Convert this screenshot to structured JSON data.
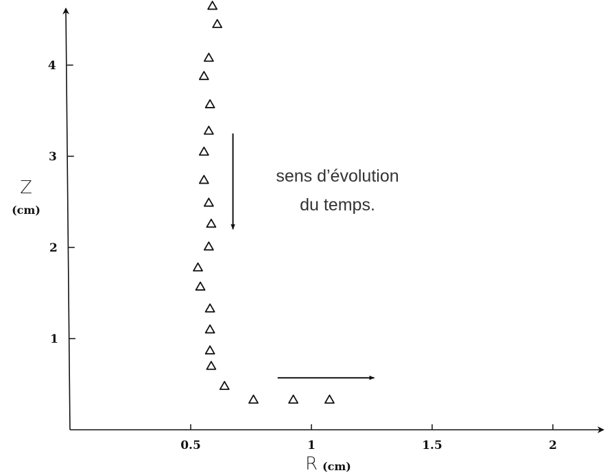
{
  "chart_data": {
    "type": "scatter",
    "title": "",
    "xlabel": "R",
    "xlabel_unit": "(cm)",
    "ylabel": "Z",
    "ylabel_unit": "(cm)",
    "xlim": [
      0,
      2.25
    ],
    "ylim": [
      0,
      4.7
    ],
    "grid": false,
    "marker": "open-triangle",
    "color": "#111111",
    "x_ticks": [
      {
        "value": 0.5,
        "label": "0.5"
      },
      {
        "value": 1,
        "label": "1"
      },
      {
        "value": 1.5,
        "label": "1.5"
      },
      {
        "value": 2,
        "label": "2"
      }
    ],
    "y_ticks": [
      {
        "value": 1,
        "label": "1"
      },
      {
        "value": 2,
        "label": "2"
      },
      {
        "value": 3,
        "label": "3"
      },
      {
        "value": 4,
        "label": "4"
      }
    ],
    "points": [
      {
        "x": 0.59,
        "y": 4.65
      },
      {
        "x": 0.61,
        "y": 4.45
      },
      {
        "x": 0.575,
        "y": 4.08
      },
      {
        "x": 0.555,
        "y": 3.88
      },
      {
        "x": 0.58,
        "y": 3.57
      },
      {
        "x": 0.575,
        "y": 3.28
      },
      {
        "x": 0.555,
        "y": 3.05
      },
      {
        "x": 0.555,
        "y": 2.74
      },
      {
        "x": 0.575,
        "y": 2.49
      },
      {
        "x": 0.585,
        "y": 2.26
      },
      {
        "x": 0.575,
        "y": 2.01
      },
      {
        "x": 0.53,
        "y": 1.78
      },
      {
        "x": 0.54,
        "y": 1.57
      },
      {
        "x": 0.58,
        "y": 1.33
      },
      {
        "x": 0.58,
        "y": 1.1
      },
      {
        "x": 0.58,
        "y": 0.87
      },
      {
        "x": 0.585,
        "y": 0.7
      },
      {
        "x": 0.64,
        "y": 0.48
      },
      {
        "x": 0.76,
        "y": 0.33
      },
      {
        "x": 0.925,
        "y": 0.33
      },
      {
        "x": 1.075,
        "y": 0.33
      }
    ],
    "annotations": {
      "text_line1": "sens d’évolution",
      "text_line2": "du temps.",
      "down_arrow": {
        "x": 0.675,
        "y_from": 3.25,
        "y_to": 2.2
      },
      "right_arrow": {
        "y": 0.57,
        "x_from": 0.86,
        "x_to": 1.26
      }
    }
  }
}
